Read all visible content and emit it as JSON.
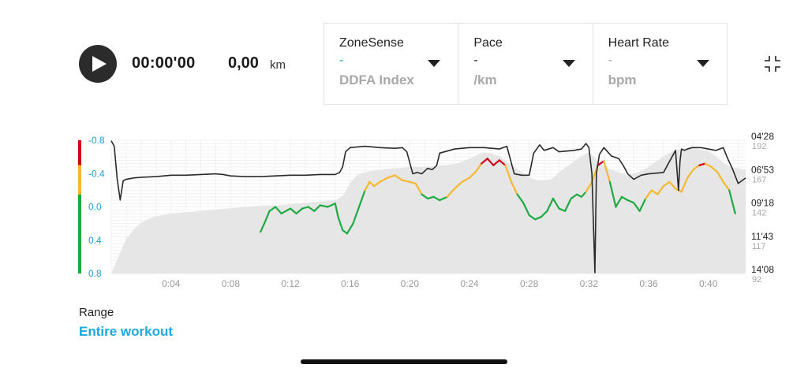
{
  "player": {
    "elapsed": "00:00'00",
    "distance": "0,00",
    "distance_unit": "km"
  },
  "selectors": [
    {
      "title": "ZoneSense",
      "value": "-",
      "unit": "DDFA Index"
    },
    {
      "title": "Pace",
      "value": "-",
      "unit": "/km"
    },
    {
      "title": "Heart Rate",
      "value": "-",
      "unit": "bpm"
    }
  ],
  "range": {
    "label": "Range",
    "value": "Entire workout"
  },
  "colors": {
    "accent": "#1ba9df",
    "zone_red": "#d0021b",
    "zone_yellow": "#f5b82e",
    "zone_green": "#1eaa43",
    "pace_line": "#2a2a2a",
    "hr_area": "#e6e6e6"
  },
  "chart_data": {
    "type": "line",
    "x_ticks": [
      "0:04",
      "0:08",
      "0:12",
      "0:16",
      "0:20",
      "0:24",
      "0:28",
      "0:32",
      "0:36",
      "0:40"
    ],
    "x_tick_minutes": [
      4,
      8,
      12,
      16,
      20,
      24,
      28,
      32,
      36,
      40
    ],
    "xlim": [
      0,
      42.5
    ],
    "ddfa_ticks": [
      "-0.8",
      "-0.4",
      "0.0",
      "0.4",
      "0.8"
    ],
    "ddfa_ylim": [
      -0.8,
      0.8
    ],
    "pace_ticks": [
      "04'28",
      "06'53",
      "09'18",
      "11'43",
      "14'08"
    ],
    "hr_ticks": [
      "192",
      "167",
      "142",
      "117",
      "92"
    ],
    "hr_ylim": [
      92,
      192
    ],
    "series": [
      {
        "kind": "area",
        "x": [
          0,
          0.5,
          1,
          1.5,
          2,
          2.5,
          3,
          4,
          5,
          6,
          7,
          8,
          9,
          10,
          11,
          12,
          13,
          14,
          15,
          15.5,
          16,
          16.5,
          17,
          18,
          19,
          20,
          21,
          22,
          23,
          23.5,
          24,
          24.5,
          25,
          25.5,
          26,
          26.5,
          27,
          27.5,
          28,
          28.5,
          29,
          29.5,
          30,
          30.5,
          31,
          31.5,
          32,
          32.5,
          33,
          33.5,
          34,
          34.5,
          35,
          35.5,
          36,
          36.5,
          37,
          37.5,
          38,
          38.5,
          39,
          39.5,
          40,
          40.5,
          41,
          41.5,
          42.5
        ],
        "values": [
          92,
          105,
          118,
          125,
          130,
          133,
          135,
          137,
          138,
          139,
          140,
          141,
          142,
          143,
          143,
          144,
          145,
          146,
          147,
          150,
          160,
          166,
          168,
          170,
          171,
          172,
          172,
          173,
          174,
          176,
          178,
          181,
          183,
          182,
          180,
          176,
          172,
          168,
          164,
          162,
          162,
          163,
          168,
          172,
          176,
          180,
          183,
          178,
          172,
          170,
          168,
          166,
          167,
          169,
          172,
          176,
          180,
          183,
          185,
          186,
          186,
          185,
          184,
          180,
          175,
          172,
          170
        ]
      },
      {
        "kind": "zone",
        "x": [
          10,
          10.3,
          10.6,
          11,
          11.4,
          11.8,
          12,
          12.4,
          12.8,
          13.2,
          13.6,
          14,
          14.5,
          15,
          15.2,
          15.5,
          15.8,
          16.2,
          16.6,
          17,
          17.3,
          17.6,
          18,
          18.5,
          19,
          19.5,
          20,
          20.4,
          20.8,
          21.2,
          21.6,
          22,
          22.5,
          23,
          23.5,
          24,
          24.4,
          24.8,
          25.2,
          25.6,
          26,
          26.4,
          26.8,
          27.2,
          27.6,
          28,
          28.4,
          28.8,
          29.2,
          29.6,
          30,
          30.4,
          30.8,
          31.2,
          31.5,
          31.8,
          32.2,
          32.6,
          33,
          33.4,
          33.8,
          34.2,
          34.6,
          35,
          35.4,
          35.8,
          36.2,
          36.6,
          37,
          37.4,
          37.8,
          38.2,
          38.6,
          39,
          39.4,
          39.8,
          40.2,
          40.6,
          41,
          41.4,
          41.8
        ],
        "values": [
          0.3,
          0.18,
          0.05,
          0.0,
          0.08,
          0.04,
          0.02,
          0.08,
          0.02,
          0.0,
          0.05,
          -0.02,
          0.0,
          -0.04,
          0.12,
          0.28,
          0.32,
          0.2,
          0.0,
          -0.2,
          -0.3,
          -0.25,
          -0.3,
          -0.35,
          -0.38,
          -0.32,
          -0.3,
          -0.28,
          -0.15,
          -0.1,
          -0.12,
          -0.08,
          -0.12,
          -0.22,
          -0.3,
          -0.35,
          -0.42,
          -0.52,
          -0.58,
          -0.5,
          -0.56,
          -0.5,
          -0.3,
          -0.15,
          -0.05,
          0.1,
          0.15,
          0.12,
          0.05,
          -0.1,
          0.02,
          0.05,
          -0.1,
          -0.15,
          -0.12,
          -0.18,
          -0.3,
          -0.5,
          -0.55,
          -0.3,
          0.0,
          -0.12,
          -0.08,
          -0.05,
          0.05,
          -0.1,
          -0.2,
          -0.15,
          -0.25,
          -0.3,
          -0.22,
          -0.18,
          -0.35,
          -0.45,
          -0.5,
          -0.52,
          -0.48,
          -0.42,
          -0.3,
          -0.2,
          0.08
        ]
      },
      {
        "kind": "pace",
        "x": [
          0,
          0.2,
          0.4,
          0.6,
          0.8,
          1,
          1.5,
          2,
          3,
          4,
          5,
          6,
          7,
          7.5,
          8,
          9,
          10,
          11,
          12,
          13,
          14,
          15,
          15.3,
          15.5,
          15.7,
          16,
          17,
          18,
          19,
          19.5,
          19.8,
          20.2,
          20.5,
          20.8,
          21.2,
          21.5,
          21.8,
          22,
          23,
          24,
          25,
          26,
          26.5,
          27,
          27.5,
          28,
          28.3,
          28.7,
          29,
          29.3,
          29.6,
          30,
          31,
          31.5,
          31.8,
          32,
          32.2,
          32.4,
          32.5,
          32.7,
          33,
          33.5,
          34,
          34.3,
          34.6,
          35,
          35.5,
          36,
          37,
          37.5,
          37.8,
          38,
          38.1,
          38.2,
          38.4,
          38.6,
          38.9,
          39.5,
          40,
          40.5,
          41,
          41.3,
          41.6,
          42,
          42.5
        ],
        "values": [
          4.5,
          4.9,
          7.3,
          8.8,
          7.4,
          7.3,
          7.2,
          7.15,
          7.1,
          7.0,
          7.0,
          6.95,
          6.9,
          6.95,
          7.05,
          7.1,
          7.1,
          7.05,
          7.0,
          7.0,
          6.95,
          6.95,
          6.8,
          6.4,
          5.3,
          5.0,
          4.9,
          5.0,
          5.05,
          5.0,
          5.3,
          6.9,
          6.8,
          6.9,
          6.5,
          6.6,
          6.3,
          5.4,
          5.1,
          5.0,
          5.0,
          5.1,
          4.9,
          6.9,
          7.0,
          7.0,
          5.4,
          4.8,
          5.2,
          5.1,
          5.0,
          5.3,
          5.2,
          5.1,
          4.7,
          5.0,
          6.9,
          14.08,
          6.9,
          5.5,
          5.0,
          5.6,
          5.8,
          6.3,
          6.9,
          7.3,
          7.0,
          6.9,
          6.8,
          5.8,
          5.2,
          8.1,
          6.0,
          5.1,
          5.2,
          5.1,
          5.0,
          5.0,
          5.1,
          5.2,
          5.0,
          5.8,
          6.5,
          7.6,
          7.2
        ]
      }
    ]
  }
}
